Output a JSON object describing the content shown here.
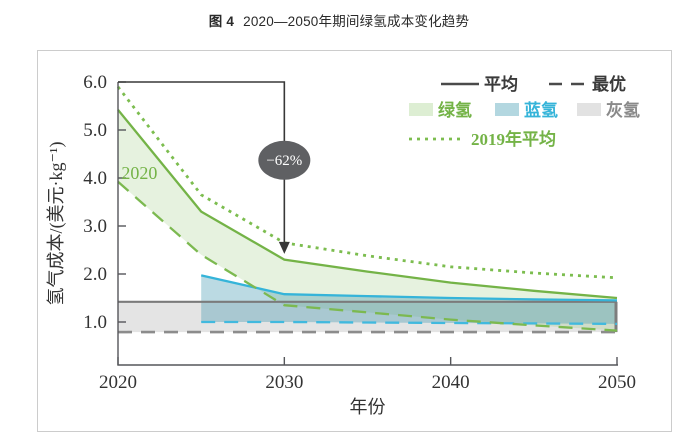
{
  "figure": {
    "caption_prefix": "图 4",
    "caption_text": "2020—2050年期间绿氢成本变化趋势"
  },
  "chart_data": {
    "type": "area",
    "title": "2020—2050年期间绿氢成本变化趋势",
    "xlabel": "年份",
    "ylabel": "氢气成本/(美元·kg⁻¹)",
    "xlim": [
      2020,
      2050
    ],
    "ylim": [
      0,
      6.0
    ],
    "x_ticks": [
      "2020",
      "2030",
      "2040",
      "2050"
    ],
    "y_ticks": [
      "1.0",
      "2.0",
      "3.0",
      "4.0",
      "5.0",
      "6.0"
    ],
    "grid": false,
    "legend_position": "top-right",
    "series": [
      {
        "name": "灰氢-平均",
        "style": "solid",
        "color": "#7b7b7b",
        "width": 2.2,
        "points": [
          [
            2020,
            1.42
          ],
          [
            2050,
            1.42
          ]
        ]
      },
      {
        "name": "灰氢-最优",
        "style": "dashed",
        "color": "#8c8c8c",
        "width": 2.6,
        "points": [
          [
            2020,
            0.79
          ],
          [
            2050,
            0.79
          ]
        ]
      },
      {
        "name": "蓝氢-平均",
        "style": "solid",
        "color": "#35b4d9",
        "width": 2.3,
        "points": [
          [
            2025,
            1.97
          ],
          [
            2030,
            1.58
          ],
          [
            2035,
            1.54
          ],
          [
            2040,
            1.5
          ],
          [
            2045,
            1.47
          ],
          [
            2050,
            1.45
          ]
        ]
      },
      {
        "name": "蓝氢-最优",
        "style": "dashed",
        "color": "#41b9de",
        "width": 2.3,
        "points": [
          [
            2025,
            1.0
          ],
          [
            2030,
            1.0
          ],
          [
            2035,
            0.99
          ],
          [
            2040,
            0.98
          ],
          [
            2045,
            0.97
          ],
          [
            2050,
            0.96
          ]
        ]
      },
      {
        "name": "绿氢-最优",
        "style": "dashed",
        "color": "#7cb950",
        "width": 2.3,
        "points": [
          [
            2020,
            3.92
          ],
          [
            2025,
            2.4
          ],
          [
            2030,
            1.35
          ],
          [
            2035,
            1.2
          ],
          [
            2040,
            1.05
          ],
          [
            2045,
            0.93
          ],
          [
            2050,
            0.82
          ]
        ]
      },
      {
        "name": "绿氢-平均",
        "style": "solid",
        "color": "#74b347",
        "width": 2.3,
        "points": [
          [
            2020,
            5.42
          ],
          [
            2025,
            3.3
          ],
          [
            2030,
            2.3
          ],
          [
            2035,
            2.05
          ],
          [
            2040,
            1.82
          ],
          [
            2045,
            1.65
          ],
          [
            2050,
            1.5
          ]
        ]
      },
      {
        "name": "2019年平均",
        "style": "dotted",
        "color": "#7cbd4f",
        "width": 2.8,
        "points": [
          [
            2020,
            5.9
          ],
          [
            2025,
            3.65
          ],
          [
            2030,
            2.65
          ],
          [
            2035,
            2.38
          ],
          [
            2040,
            2.15
          ],
          [
            2045,
            2.02
          ],
          [
            2050,
            1.92
          ]
        ]
      }
    ],
    "bands": [
      {
        "name": "灰氢",
        "upper": "灰氢-平均",
        "lower": "灰氢-最优",
        "fill": "#e4e4e4"
      },
      {
        "name": "绿氢",
        "upper": "绿氢-平均",
        "lower": "绿氢-最优",
        "fill": "rgba(119,182,75,0.18)"
      },
      {
        "name": "蓝氢",
        "upper": "蓝氢-平均",
        "lower": "蓝氢-最优",
        "fill": "rgba(60,150,175,0.35)"
      }
    ],
    "end_cap": {
      "year": 2050,
      "from": 1.42,
      "to": 0.79,
      "color": "#7d7d7d"
    },
    "annotation": {
      "label": "−62%",
      "bracket_start_year": 2020,
      "arrow_year": 2030,
      "top_value": 6.0,
      "arrow_tip_value": 2.42,
      "ellipse_value": 4.37,
      "line_color": "#383838",
      "ellipse_fill": "#5f6063",
      "text_color": "#ffffff"
    },
    "inline_label": {
      "text": "2020",
      "year": 2020.2,
      "value": 3.98,
      "color": "#74b347"
    }
  },
  "legend": {
    "row1": [
      {
        "label": "平均",
        "style": "solid",
        "color": "#4a4a4a",
        "text_color": "#3a3a3a"
      },
      {
        "label": "最优",
        "style": "dashed",
        "color": "#4a4a4a",
        "text_color": "#3a3a3a"
      }
    ],
    "row2": [
      {
        "label": "绿氢",
        "swatch": "#ddeed3",
        "text_color": "#74b347"
      },
      {
        "label": "蓝氢",
        "swatch": "#b3d7e0",
        "text_color": "#35b4d9"
      },
      {
        "label": "灰氢",
        "swatch": "#e2e2e2",
        "text_color": "#8a8a8a"
      }
    ],
    "row3": [
      {
        "label": "2019年平均",
        "style": "dotted",
        "color": "#7cbd4f",
        "text_color": "#74b347"
      }
    ]
  }
}
